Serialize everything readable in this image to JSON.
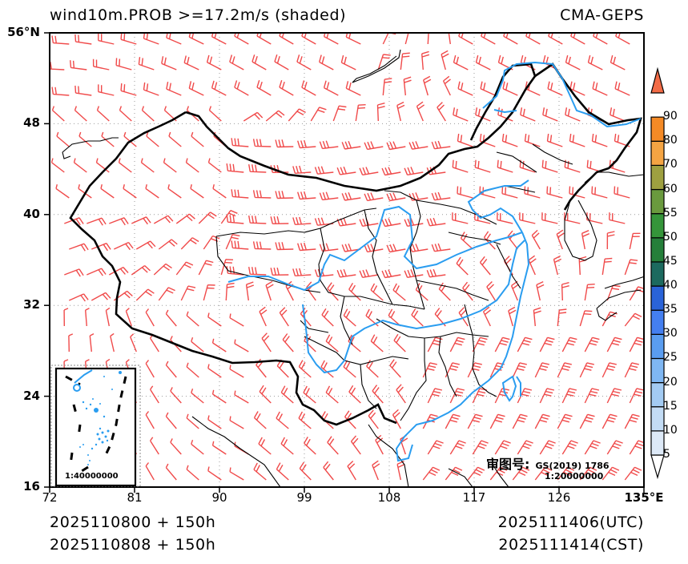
{
  "header": {
    "title": "wind10m.PROB >=17.2m/s (shaded)",
    "model": "CMA-GEPS"
  },
  "axes": {
    "y_ticks": [
      {
        "label": "56°N",
        "lat": 56
      },
      {
        "label": "48",
        "lat": 48
      },
      {
        "label": "40",
        "lat": 40
      },
      {
        "label": "32",
        "lat": 32
      },
      {
        "label": "24",
        "lat": 24
      },
      {
        "label": "16",
        "lat": 16
      }
    ],
    "x_ticks": [
      {
        "label": "72",
        "lon": 72
      },
      {
        "label": "81",
        "lon": 81
      },
      {
        "label": "90",
        "lon": 90
      },
      {
        "label": "99",
        "lon": 99
      },
      {
        "label": "108",
        "lon": 108
      },
      {
        "label": "117",
        "lon": 117
      },
      {
        "label": "126",
        "lon": 126
      },
      {
        "label": "135°E",
        "lon": 135
      }
    ],
    "lon_range": [
      72,
      135
    ],
    "lat_range": [
      16,
      56
    ]
  },
  "colorbar": {
    "levels": [
      "5",
      "10",
      "15",
      "20",
      "25",
      "30",
      "35",
      "40",
      "45",
      "50",
      "55",
      "60",
      "70",
      "80",
      "90"
    ],
    "colors": [
      "#dde9f7",
      "#c3dcf5",
      "#a3cbf3",
      "#7fb7f3",
      "#5a9df0",
      "#447ff0",
      "#2a63d8",
      "#1c6a5f",
      "#257f3a",
      "#35953a",
      "#6a9a3e",
      "#9ea040",
      "#f4a443",
      "#f48a26",
      "#f26b46"
    ],
    "under_color": "#ffffff"
  },
  "inset": {
    "scale": "1:40000000"
  },
  "approval": {
    "label": "审图号:",
    "code": "GS(2019) 1786",
    "scale": "1:20000000"
  },
  "footer": {
    "init_utc": "2025110800 + 150h",
    "init_cst": "2025110808 + 150h",
    "valid_utc": "2025111406(UTC)",
    "valid_cst": "2025111414(CST)"
  },
  "style": {
    "barb_color": "#f04a4a",
    "river_color": "#2a9df0",
    "border_color": "#000000"
  }
}
